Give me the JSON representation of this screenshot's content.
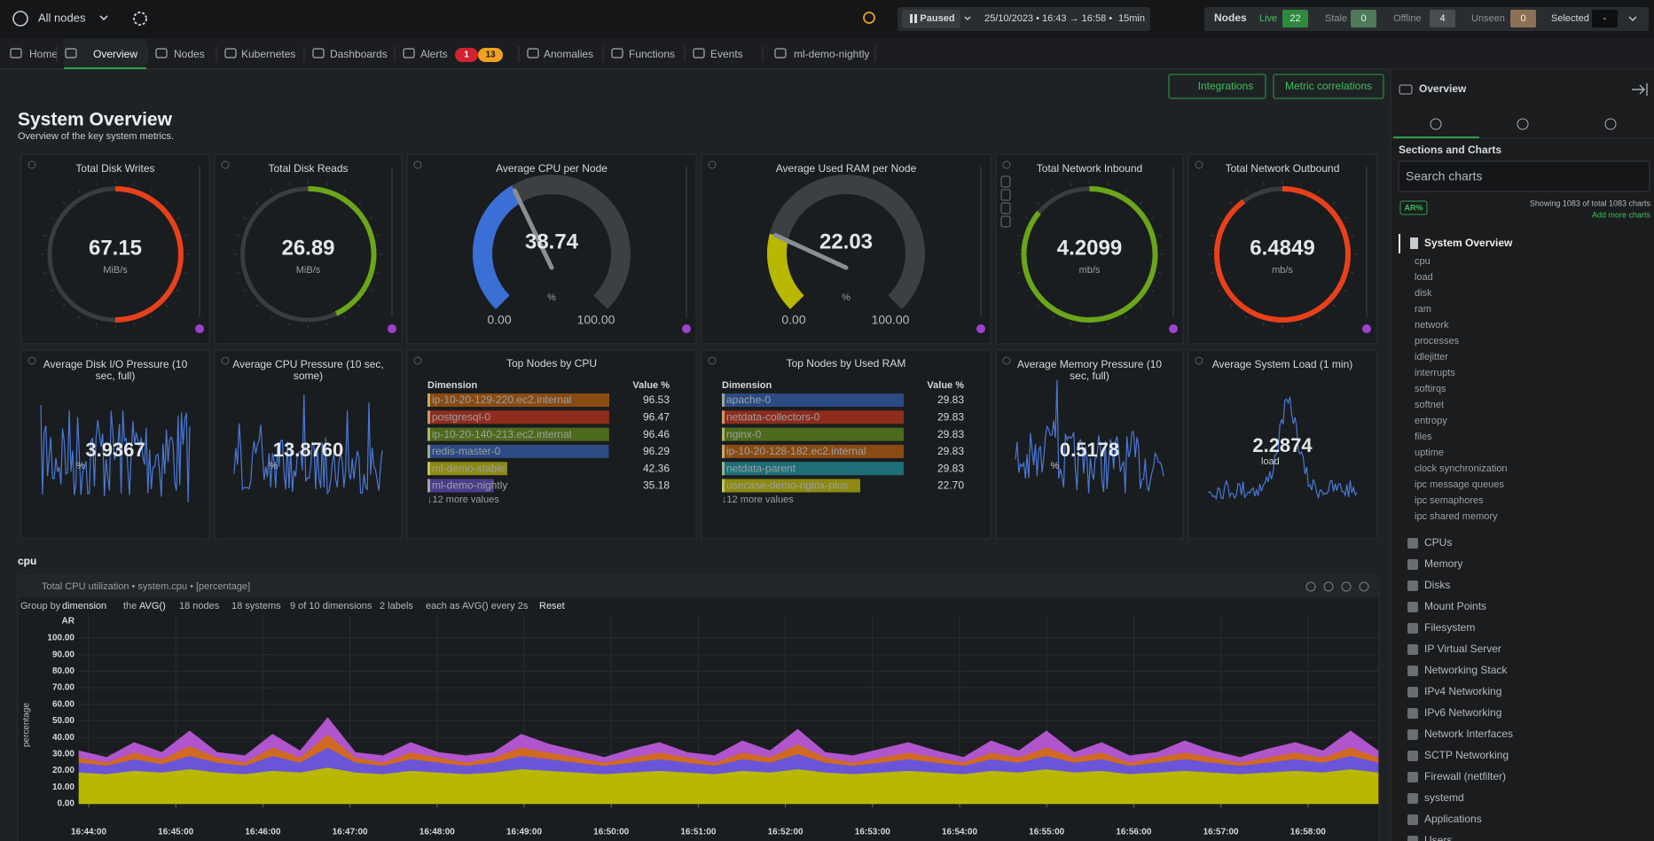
{
  "top_bar": {
    "nodes_selector": "All nodes",
    "playback": "Paused",
    "time_range": "25/10/2023 • 16:43 → 16:58 •",
    "duration": "15min",
    "nodes": {
      "label": "Nodes",
      "counts": [
        {
          "label": "Live",
          "value": "22",
          "color": "#2d8a3e"
        },
        {
          "label": "Stale",
          "value": "0",
          "color": "#4f7a5a"
        },
        {
          "label": "Offline",
          "value": "4",
          "color": "#4a4d50"
        },
        {
          "label": "Unseen",
          "value": "0",
          "color": "#8c7156"
        },
        {
          "label": "Selected",
          "value": "-",
          "color": "#0e0f10"
        }
      ]
    }
  },
  "tabs": [
    {
      "label": "Home"
    },
    {
      "label": "Overview",
      "active": true
    },
    {
      "label": "Nodes"
    },
    {
      "label": "Kubernetes"
    },
    {
      "label": "Dashboards"
    },
    {
      "label": "Alerts",
      "badges": [
        {
          "text": "1",
          "color": "#d0222f"
        },
        {
          "text": "13",
          "color": "#f0a020"
        }
      ]
    },
    {
      "label": "Anomalies"
    },
    {
      "label": "Functions"
    },
    {
      "label": "Events"
    },
    {
      "label": "ml-demo-nightly"
    }
  ],
  "actions": [
    "Integrations",
    "Metric correlations"
  ],
  "header": {
    "title": "System Overview",
    "subtitle": "Overview of the key system metrics."
  },
  "gauges": [
    {
      "title": "Total Disk Writes",
      "value": "67.15",
      "unit": "MiB/s",
      "style": "ring",
      "color": "#e8401a"
    },
    {
      "title": "Total Disk Reads",
      "value": "26.89",
      "unit": "MiB/s",
      "style": "ring",
      "color": "#6aa51a"
    },
    {
      "title": "Average CPU per Node",
      "value": "38.74",
      "unit": "%",
      "style": "dial",
      "min": "0.00",
      "max": "100.00",
      "color": "#3b6fd6"
    },
    {
      "title": "Average Used RAM per Node",
      "value": "22.03",
      "unit": "%",
      "style": "dial",
      "min": "0.00",
      "max": "100.00",
      "color": "#b8b800"
    },
    {
      "title": "Total Network Inbound",
      "value": "4.2099",
      "unit": "mb/s",
      "style": "ring",
      "color": "#6aa51a"
    },
    {
      "title": "Total Network Outbound",
      "value": "6.4849",
      "unit": "mb/s",
      "style": "ring",
      "color": "#e8401a"
    }
  ],
  "sparklines": [
    {
      "title": "Average Disk I/O Pressure (10 sec, full)",
      "value": "3.9367",
      "unit": "%"
    },
    {
      "title": "Average CPU Pressure (10 sec, some)",
      "value": "13.8760",
      "unit": "%"
    },
    {
      "title": "Average Memory Pressure (10 sec, full)",
      "value": "0.5178",
      "unit": "%"
    },
    {
      "title": "Average System Load (1 min)",
      "value": "2.2874",
      "unit": "load"
    }
  ],
  "top_nodes": [
    {
      "title": "Top Nodes by CPU",
      "columns": [
        "Dimension",
        "Value %"
      ],
      "more": "↓12 more values",
      "rows": [
        {
          "name": "ip-10-20-129-220.ec2.internal",
          "value": "96.53",
          "color": "#8a4b12"
        },
        {
          "name": "postgresql-0",
          "value": "96.47",
          "color": "#8f2c1c"
        },
        {
          "name": "ip-10-20-140-213.ec2.internal",
          "value": "96.46",
          "color": "#4d6a1c"
        },
        {
          "name": "redis-master-0",
          "value": "96.29",
          "color": "#2b4b82"
        },
        {
          "name": "ml-demo-stable",
          "value": "42.36",
          "color": "#8c8a10"
        },
        {
          "name": "ml-demo-nightly",
          "value": "35.18",
          "color": "#4a3d8c"
        }
      ]
    },
    {
      "title": "Top Nodes by Used RAM",
      "columns": [
        "Dimension",
        "Value %"
      ],
      "more": "↓12 more values",
      "rows": [
        {
          "name": "apache-0",
          "value": "29.83",
          "color": "#2b4b82"
        },
        {
          "name": "netdata-collectors-0",
          "value": "29.83",
          "color": "#8f2c1c"
        },
        {
          "name": "nginx-0",
          "value": "29.83",
          "color": "#4d6a1c"
        },
        {
          "name": "ip-10-20-128-182.ec2.internal",
          "value": "29.83",
          "color": "#8a4b12"
        },
        {
          "name": "netdata-parent",
          "value": "29.83",
          "color": "#1d6e78"
        },
        {
          "name": "usecase-demo-nginx-plus",
          "value": "22.70",
          "color": "#8c8a10"
        }
      ]
    }
  ],
  "section_label": "cpu",
  "chart_panel": {
    "controls": [
      "Group by",
      "dimension",
      "the",
      "AVG()",
      "18 nodes",
      "18 systems",
      "9 of 10 dimensions",
      "2 labels",
      "each as AVG() every 2s",
      "Reset"
    ]
  },
  "chart_data": {
    "type": "area",
    "stacked": true,
    "title": "Total CPU utilization • system.cpu • [percentage]",
    "ylabel": "percentage",
    "corner_label": "AR",
    "ylim": [
      0,
      100
    ],
    "yticks": [
      {
        "value": 0,
        "label": "0.00"
      },
      {
        "value": 10,
        "label": "10.00"
      },
      {
        "value": 20,
        "label": "20.00"
      },
      {
        "value": 30,
        "label": "30.00"
      },
      {
        "value": 40,
        "label": "40.00"
      },
      {
        "value": 50,
        "label": "50.00"
      },
      {
        "value": 60,
        "label": "60.00"
      },
      {
        "value": 70,
        "label": "70.00"
      },
      {
        "value": 80,
        "label": "80.00"
      },
      {
        "value": 90,
        "label": "90.00"
      },
      {
        "value": 100,
        "label": "100.00"
      }
    ],
    "grid": true,
    "xtick_labels": [
      "16:44:00",
      "16:45:00",
      "16:46:00",
      "16:47:00",
      "16:48:00",
      "16:49:00",
      "16:50:00",
      "16:51:00",
      "16:52:00",
      "16:53:00",
      "16:54:00",
      "16:55:00",
      "16:56:00",
      "16:57:00",
      "16:58:00"
    ],
    "series": [
      {
        "color": "#b9b800",
        "values": [
          19,
          18,
          20,
          19,
          21,
          19,
          18,
          20,
          19,
          22,
          19,
          18,
          20,
          19,
          18,
          19,
          21,
          20,
          19,
          18,
          19,
          20,
          19,
          18,
          20,
          19,
          21,
          19,
          18,
          19,
          20,
          19,
          18,
          20,
          19,
          21,
          19,
          20,
          18,
          19,
          20,
          19,
          18,
          19,
          20,
          19,
          21,
          19
        ]
      },
      {
        "color": "#6a55d8",
        "values": [
          6,
          5,
          7,
          5,
          8,
          6,
          5,
          9,
          6,
          12,
          6,
          5,
          7,
          6,
          5,
          6,
          8,
          7,
          6,
          5,
          6,
          7,
          6,
          5,
          7,
          6,
          9,
          6,
          5,
          6,
          7,
          6,
          5,
          7,
          6,
          8,
          6,
          7,
          5,
          6,
          7,
          6,
          5,
          6,
          7,
          6,
          8,
          6
        ]
      },
      {
        "color": "#d06a22",
        "values": [
          3,
          2,
          4,
          3,
          6,
          3,
          2,
          5,
          3,
          8,
          3,
          2,
          4,
          3,
          2,
          3,
          5,
          4,
          3,
          2,
          3,
          4,
          3,
          2,
          4,
          3,
          6,
          3,
          2,
          3,
          4,
          3,
          2,
          4,
          3,
          5,
          3,
          4,
          2,
          3,
          4,
          3,
          2,
          3,
          4,
          3,
          5,
          3
        ]
      },
      {
        "color": "#b055cc",
        "values": [
          4,
          3,
          6,
          4,
          9,
          3,
          4,
          8,
          4,
          10,
          3,
          4,
          6,
          3,
          4,
          3,
          8,
          5,
          4,
          3,
          5,
          6,
          3,
          4,
          7,
          4,
          9,
          3,
          4,
          5,
          6,
          4,
          3,
          7,
          4,
          10,
          3,
          6,
          4,
          3,
          7,
          4,
          3,
          5,
          6,
          4,
          10,
          4
        ]
      }
    ]
  },
  "sidebar": {
    "title": "Overview",
    "heading": "Sections and Charts",
    "search_placeholder": "Search charts",
    "badge": "AR%",
    "summary": "Showing 1083 of total 1083 charts",
    "add": "Add more charts",
    "active_section": "System Overview",
    "subsections": [
      "cpu",
      "load",
      "disk",
      "ram",
      "network",
      "processes",
      "idlejitter",
      "interrupts",
      "softirqs",
      "softnet",
      "entropy",
      "files",
      "uptime",
      "clock synchronization",
      "ipc message queues",
      "ipc semaphores",
      "ipc shared memory"
    ],
    "sections": [
      "CPUs",
      "Memory",
      "Disks",
      "Mount Points",
      "Filesystem",
      "IP Virtual Server",
      "Networking Stack",
      "IPv4 Networking",
      "IPv6 Networking",
      "Network Interfaces",
      "SCTP Networking",
      "Firewall (netfilter)",
      "systemd",
      "Applications",
      "Users"
    ]
  }
}
